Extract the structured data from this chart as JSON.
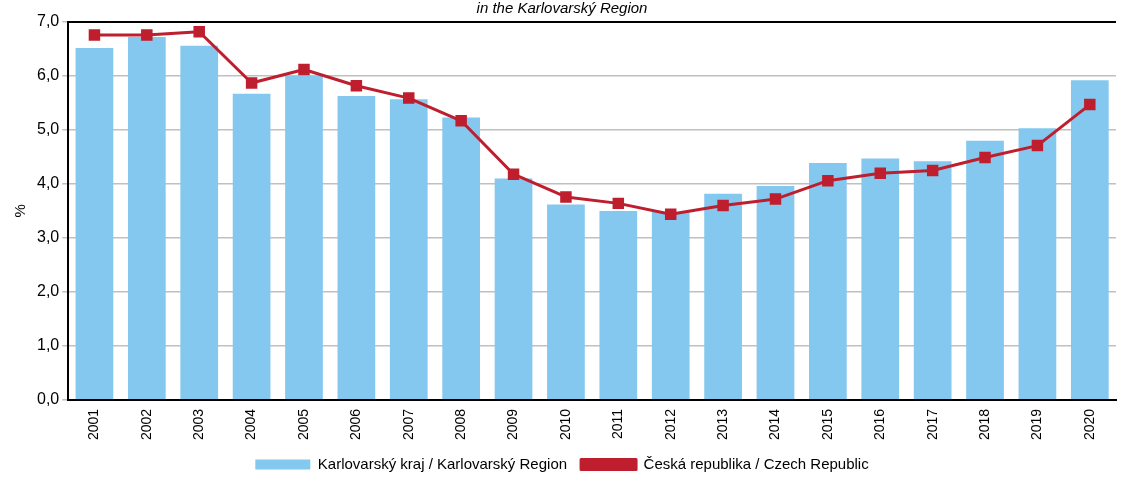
{
  "chart_data": {
    "type": "bar",
    "title": "in the Karlovarský Region",
    "ylabel": "%",
    "categories": [
      "2001",
      "2002",
      "2003",
      "2004",
      "2005",
      "2006",
      "2007",
      "2008",
      "2009",
      "2010",
      "2011",
      "2012",
      "2013",
      "2014",
      "2015",
      "2016",
      "2017",
      "2018",
      "2019",
      "2020"
    ],
    "series": [
      {
        "name": "Karlovarský kraj / Karlovarský Region",
        "color": "#85c8ef",
        "values": [
          6.52,
          6.72,
          6.56,
          5.67,
          6.0,
          5.63,
          5.57,
          5.23,
          4.1,
          3.62,
          3.5,
          3.48,
          3.82,
          3.96,
          4.39,
          4.47,
          4.42,
          4.8,
          5.03,
          5.92
        ]
      },
      {
        "name": "Česká republika / Czech Republic",
        "type": "line",
        "color": "#be1e2d",
        "marker": "square",
        "values": [
          6.76,
          6.76,
          6.82,
          5.87,
          6.12,
          5.82,
          5.59,
          5.17,
          4.18,
          3.76,
          3.64,
          3.44,
          3.6,
          3.72,
          4.06,
          4.2,
          4.25,
          4.49,
          4.71,
          5.47
        ]
      }
    ],
    "ylim": [
      0,
      7
    ],
    "yticks": [
      {
        "value": 0,
        "label": "0,0"
      },
      {
        "value": 1,
        "label": "1,0"
      },
      {
        "value": 2,
        "label": "2,0"
      },
      {
        "value": 3,
        "label": "3,0"
      },
      {
        "value": 4,
        "label": "4,0"
      },
      {
        "value": 5,
        "label": "5,0"
      },
      {
        "value": 6,
        "label": "6,0"
      },
      {
        "value": 7,
        "label": "7,0"
      }
    ],
    "grid": "y",
    "legend": "bottom"
  }
}
